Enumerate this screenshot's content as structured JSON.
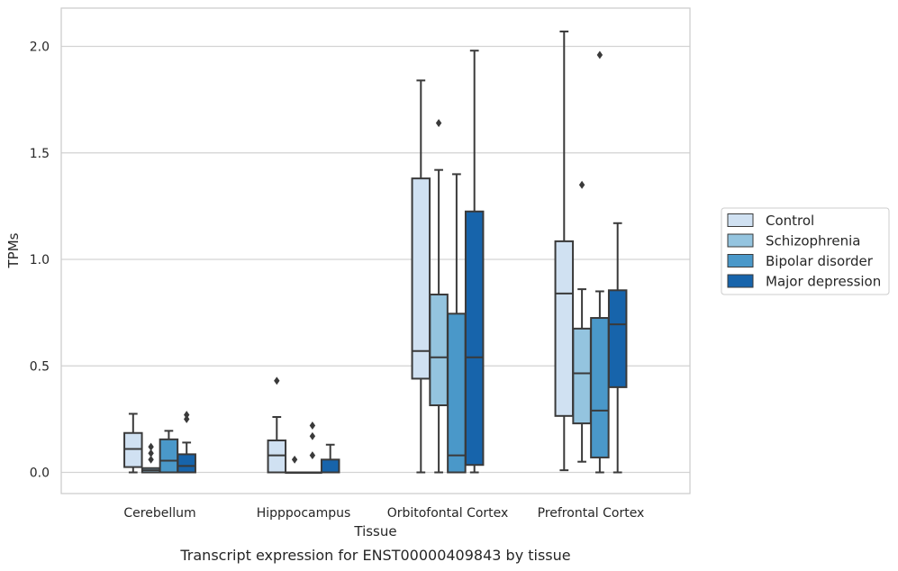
{
  "chart_data": {
    "type": "box",
    "title": "",
    "caption": "Transcript expression for ENST00000409843 by tissue",
    "xlabel": "Tissue",
    "ylabel": "TPMs",
    "ylim": [
      -0.1,
      2.18
    ],
    "yticks": [
      0.0,
      0.5,
      1.0,
      1.5,
      2.0
    ],
    "ytick_labels": [
      "0.0",
      "0.5",
      "1.0",
      "1.5",
      "2.0"
    ],
    "grid": "horizontal",
    "legend_position": "right",
    "categories": [
      "Cerebellum",
      "Hipppocampus",
      "Orbitofontal Cortex",
      "Prefrontal Cortex"
    ],
    "series": [
      {
        "name": "Control",
        "color": "#d0e1f2",
        "boxes": [
          {
            "whislo": 0.0,
            "q1": 0.025,
            "med": 0.11,
            "q3": 0.185,
            "whishi": 0.275,
            "fliers": []
          },
          {
            "whislo": 0.0,
            "q1": 0.0,
            "med": 0.08,
            "q3": 0.15,
            "whishi": 0.26,
            "fliers": [
              0.43
            ]
          },
          {
            "whislo": 0.0,
            "q1": 0.44,
            "med": 0.57,
            "q3": 1.38,
            "whishi": 1.84,
            "fliers": []
          },
          {
            "whislo": 0.01,
            "q1": 0.265,
            "med": 0.84,
            "q3": 1.085,
            "whishi": 2.07,
            "fliers": []
          }
        ]
      },
      {
        "name": "Schizophrenia",
        "color": "#94c4df",
        "boxes": [
          {
            "whislo": 0.0,
            "q1": 0.0,
            "med": 0.01,
            "q3": 0.02,
            "whishi": 0.02,
            "fliers": [
              0.06,
              0.09,
              0.12
            ]
          },
          {
            "whislo": 0.0,
            "q1": 0.0,
            "med": 0.0,
            "q3": 0.0,
            "whishi": 0.0,
            "fliers": [
              0.06
            ]
          },
          {
            "whislo": 0.0,
            "q1": 0.315,
            "med": 0.54,
            "q3": 0.835,
            "whishi": 1.42,
            "fliers": [
              1.64
            ]
          },
          {
            "whislo": 0.05,
            "q1": 0.23,
            "med": 0.465,
            "q3": 0.675,
            "whishi": 0.86,
            "fliers": [
              1.35
            ]
          }
        ]
      },
      {
        "name": "Bipolar disorder",
        "color": "#4a98c9",
        "boxes": [
          {
            "whislo": 0.0,
            "q1": 0.0,
            "med": 0.055,
            "q3": 0.155,
            "whishi": 0.195,
            "fliers": []
          },
          {
            "whislo": 0.0,
            "q1": 0.0,
            "med": 0.0,
            "q3": 0.0,
            "whishi": 0.0,
            "fliers": [
              0.08,
              0.17,
              0.22
            ]
          },
          {
            "whislo": 0.0,
            "q1": 0.0,
            "med": 0.08,
            "q3": 0.745,
            "whishi": 1.4,
            "fliers": []
          },
          {
            "whislo": 0.0,
            "q1": 0.07,
            "med": 0.29,
            "q3": 0.725,
            "whishi": 0.85,
            "fliers": [
              1.96
            ]
          }
        ]
      },
      {
        "name": "Major depression",
        "color": "#1764ab",
        "boxes": [
          {
            "whislo": 0.0,
            "q1": 0.0,
            "med": 0.03,
            "q3": 0.085,
            "whishi": 0.14,
            "fliers": [
              0.25,
              0.27
            ]
          },
          {
            "whislo": 0.0,
            "q1": 0.0,
            "med": 0.0,
            "q3": 0.06,
            "whishi": 0.13,
            "fliers": []
          },
          {
            "whislo": 0.0,
            "q1": 0.035,
            "med": 0.54,
            "q3": 1.225,
            "whishi": 1.98,
            "fliers": []
          },
          {
            "whislo": 0.0,
            "q1": 0.4,
            "med": 0.695,
            "q3": 0.855,
            "whishi": 1.17,
            "fliers": []
          }
        ]
      }
    ]
  }
}
